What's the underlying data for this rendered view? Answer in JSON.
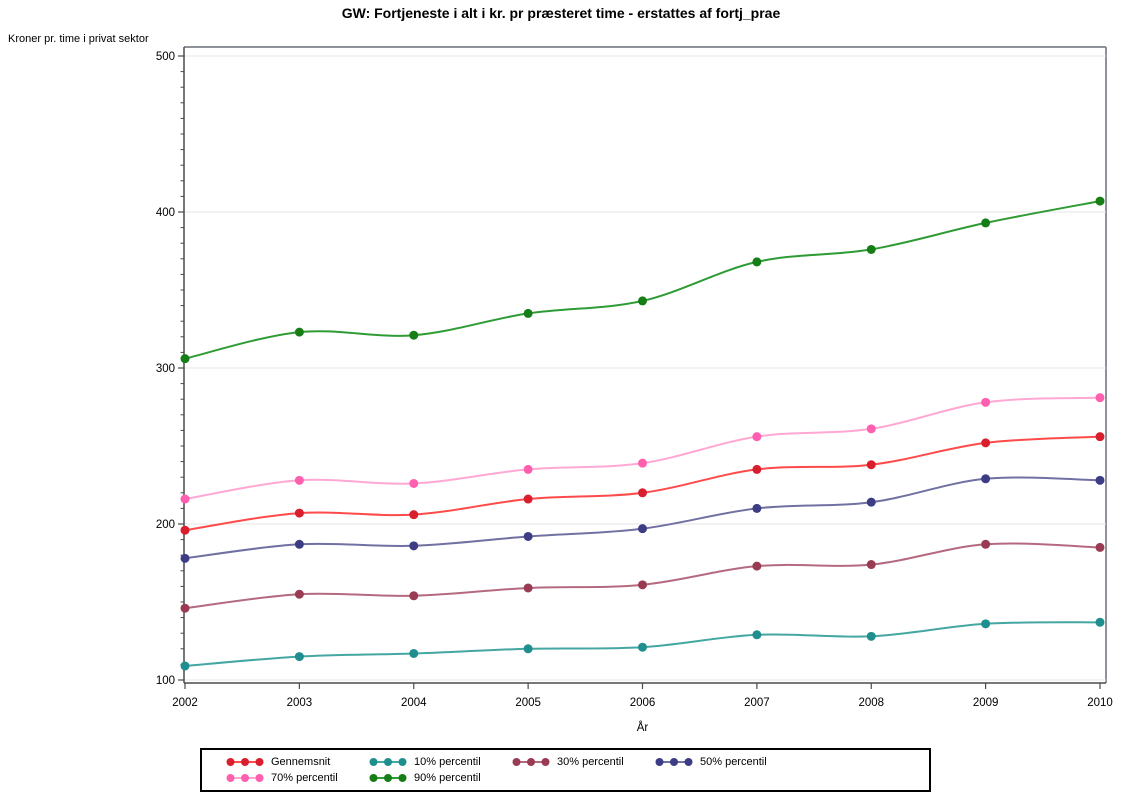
{
  "chart_data": {
    "type": "line",
    "title": "GW: Fortjeneste i alt i kr. pr præsteret time - erstattes af fortj_prae",
    "ylabel": "Kroner pr. time i privat sektor",
    "xlabel": "År",
    "x": [
      2002,
      2003,
      2004,
      2005,
      2006,
      2007,
      2008,
      2009,
      2010
    ],
    "ylim": [
      100,
      500
    ],
    "yticks": [
      100,
      200,
      300,
      400,
      500
    ],
    "y_minor_tick_step": 10,
    "grid": "horizontal-major-only",
    "legend_position": "bottom",
    "frame_color": "#8c9298",
    "axis_color": "#4a4a4a",
    "grid_color": "#e4e4e4",
    "series": [
      {
        "name": "Gennemsnit",
        "marker_color": "#d91e2e",
        "line_color": "#ff4a4a",
        "values": [
          196,
          207,
          206,
          216,
          220,
          235,
          238,
          252,
          256
        ]
      },
      {
        "name": "10% percentil",
        "marker_color": "#1f8e8e",
        "line_color": "#44a7a2",
        "values": [
          109,
          115,
          117,
          120,
          121,
          129,
          128,
          136,
          137
        ]
      },
      {
        "name": "30% percentil",
        "marker_color": "#9a3b54",
        "line_color": "#b5697f",
        "values": [
          146,
          155,
          154,
          159,
          161,
          173,
          174,
          187,
          185
        ]
      },
      {
        "name": "50% percentil",
        "marker_color": "#3d3d85",
        "line_color": "#7070a2",
        "values": [
          178,
          187,
          186,
          192,
          197,
          210,
          214,
          229,
          228
        ]
      },
      {
        "name": "70% percentil",
        "marker_color": "#ff5fae",
        "line_color": "#ffa8d4",
        "values": [
          216,
          228,
          226,
          235,
          239,
          256,
          261,
          278,
          281
        ]
      },
      {
        "name": "90% percentil",
        "marker_color": "#177d17",
        "line_color": "#2f9b35",
        "values": [
          306,
          323,
          321,
          335,
          343,
          368,
          376,
          393,
          407
        ]
      }
    ]
  }
}
